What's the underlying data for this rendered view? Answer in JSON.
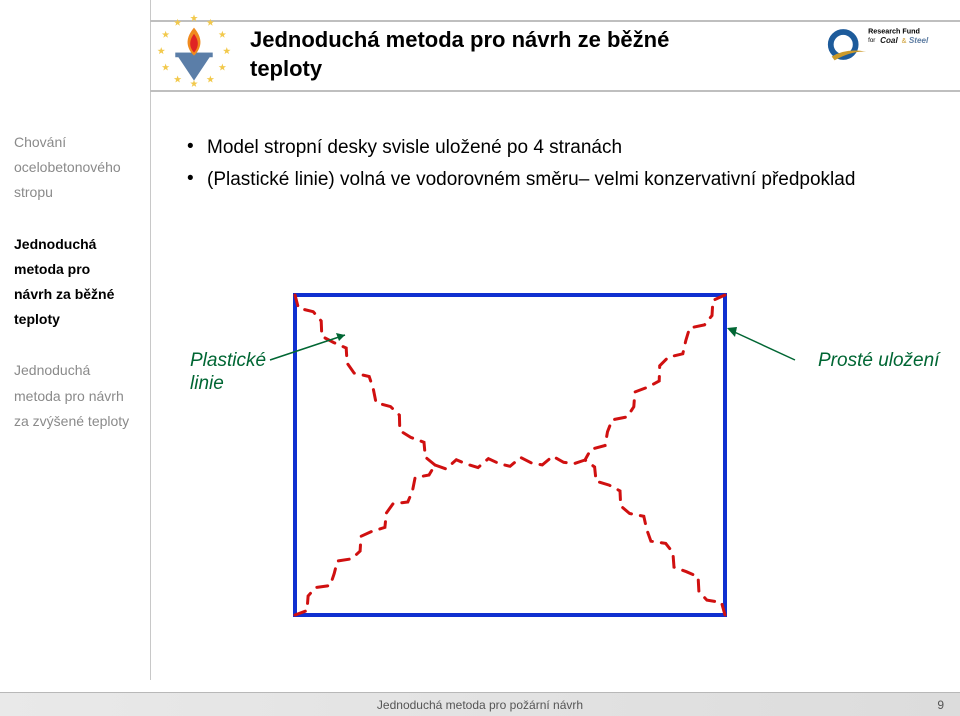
{
  "header": {
    "title_line1": "Jednoduchá metoda pro návrh ze běžné",
    "title_line2": "teploty",
    "left_logo": {
      "stars_color": "#f2c94c",
      "ring_color": "#003399",
      "flame_outer": "#f08a1e",
      "flame_inner": "#e02424",
      "beam_color": "#5b7ea8"
    },
    "right_logo": {
      "ring_color": "#1d5b9b",
      "swoosh_color": "#cc9a2a",
      "text_main": "Research Fund",
      "text_for": "for",
      "word1": "Coal",
      "amp": "&",
      "word2": "Steel",
      "word1_color": "#1a1a1a",
      "word2_color": "#5f7ea3"
    }
  },
  "sidebar": {
    "g1": {
      "l1": "Chování",
      "l2": "ocelobetonového",
      "l3": "stropu"
    },
    "g2": {
      "l1": "Jednoduchá",
      "l2": "metoda pro",
      "l3": "návrh za běžné",
      "l4": "teploty"
    },
    "g3": {
      "l1": "Jednoduchá",
      "l2": "metoda pro návrh",
      "l3": "za zvýšené teploty"
    }
  },
  "content": {
    "b1": "Model stropní desky svisle uložené po 4 stranách",
    "b2": "(Plastické linie) volná ve vodorovném směru– velmi konzervativní předpoklad"
  },
  "diagram": {
    "rect_stroke": "#1030d0",
    "rect_stroke_width": 4,
    "yield_color": "#d01010",
    "yield_width": 3,
    "dash": "11 9",
    "arrow_color": "#006633",
    "ann_left_1": "Plastické",
    "ann_left_2": "linie",
    "ann_right": "Prosté uložení"
  },
  "footer": {
    "text": "Jednoduchá metoda pro požární návrh",
    "page": "9"
  }
}
